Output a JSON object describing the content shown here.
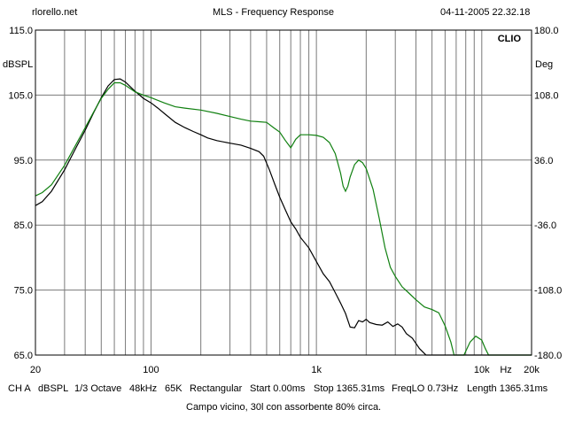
{
  "header": {
    "site": "rlorello.net",
    "title": "MLS - Frequency Response",
    "datetime": "04-11-2005 22.32.18",
    "logo": "CLIO"
  },
  "footer": {
    "channel": "CH A",
    "unit": "dBSPL",
    "smoothing": "1/3 Octave",
    "rate": "48kHz",
    "size": "65K",
    "window": "Rectangular",
    "start": "Start 0.00ms",
    "stop": "Stop 1365.31ms",
    "freqlo": "FreqLO 0.73Hz",
    "length": "Length 1365.31ms",
    "note": "Campo vicino, 30l con assorbente 80% circa."
  },
  "chart_data": {
    "type": "line",
    "xscale": "log",
    "xlim": [
      20,
      20000
    ],
    "ylim": [
      65,
      115
    ],
    "y2lim": [
      -180,
      180
    ],
    "ylabel": "dBSPL",
    "y2label": "Deg",
    "xlabel": "Hz",
    "grid": true,
    "x_tick_labels": [
      {
        "value": 20,
        "label": "20"
      },
      {
        "value": 100,
        "label": "100"
      },
      {
        "value": 1000,
        "label": "1k"
      },
      {
        "value": 10000,
        "label": "10k"
      },
      {
        "value": 20000,
        "label": "20k"
      }
    ],
    "y_ticks": [
      {
        "value": 115,
        "label": "115.0"
      },
      {
        "value": 105,
        "label": "105.0"
      },
      {
        "value": 95,
        "label": "95.0"
      },
      {
        "value": 85,
        "label": "85.0"
      },
      {
        "value": 75,
        "label": "75.0"
      },
      {
        "value": 65,
        "label": "65.0"
      }
    ],
    "y2_ticks": [
      {
        "value": 180,
        "label": "180.0"
      },
      {
        "value": 108,
        "label": "108.0"
      },
      {
        "value": 36,
        "label": "36.0"
      },
      {
        "value": -36,
        "label": "-36.0"
      },
      {
        "value": -108,
        "label": "-108.0"
      },
      {
        "value": -180,
        "label": "-180.0"
      }
    ],
    "series": [
      {
        "color": "#000000",
        "points": [
          [
            20,
            88.0
          ],
          [
            22,
            88.6
          ],
          [
            25,
            90.2
          ],
          [
            30,
            93.5
          ],
          [
            35,
            96.8
          ],
          [
            40,
            99.6
          ],
          [
            45,
            102.3
          ],
          [
            50,
            104.6
          ],
          [
            55,
            106.4
          ],
          [
            60,
            107.4
          ],
          [
            65,
            107.5
          ],
          [
            70,
            107.0
          ],
          [
            80,
            105.6
          ],
          [
            90,
            104.5
          ],
          [
            100,
            103.8
          ],
          [
            110,
            103.0
          ],
          [
            120,
            102.2
          ],
          [
            140,
            100.8
          ],
          [
            160,
            100.0
          ],
          [
            180,
            99.4
          ],
          [
            200,
            98.9
          ],
          [
            220,
            98.4
          ],
          [
            250,
            98.0
          ],
          [
            300,
            97.6
          ],
          [
            350,
            97.3
          ],
          [
            400,
            96.8
          ],
          [
            450,
            96.3
          ],
          [
            480,
            95.6
          ],
          [
            520,
            93.5
          ],
          [
            560,
            91.3
          ],
          [
            600,
            89.3
          ],
          [
            650,
            87.3
          ],
          [
            700,
            85.5
          ],
          [
            750,
            84.4
          ],
          [
            800,
            83.1
          ],
          [
            900,
            81.5
          ],
          [
            1000,
            79.4
          ],
          [
            1100,
            77.5
          ],
          [
            1200,
            76.3
          ],
          [
            1300,
            74.6
          ],
          [
            1400,
            73.0
          ],
          [
            1500,
            71.4
          ],
          [
            1600,
            69.3
          ],
          [
            1700,
            69.2
          ],
          [
            1800,
            70.3
          ],
          [
            1900,
            70.1
          ],
          [
            2000,
            70.5
          ],
          [
            2100,
            70.0
          ],
          [
            2300,
            69.7
          ],
          [
            2500,
            69.6
          ],
          [
            2700,
            70.1
          ],
          [
            2900,
            69.4
          ],
          [
            3100,
            69.8
          ],
          [
            3300,
            69.3
          ],
          [
            3500,
            68.3
          ],
          [
            3800,
            67.6
          ],
          [
            4200,
            66.0
          ],
          [
            4600,
            65.0
          ],
          [
            20000,
            65.0
          ]
        ]
      },
      {
        "color": "#108010",
        "points": [
          [
            20,
            89.5
          ],
          [
            22,
            90.0
          ],
          [
            25,
            91.2
          ],
          [
            30,
            94.2
          ],
          [
            35,
            97.3
          ],
          [
            40,
            100.0
          ],
          [
            45,
            102.4
          ],
          [
            50,
            104.5
          ],
          [
            55,
            105.9
          ],
          [
            60,
            106.9
          ],
          [
            65,
            106.9
          ],
          [
            70,
            106.5
          ],
          [
            80,
            105.5
          ],
          [
            90,
            105.0
          ],
          [
            100,
            104.6
          ],
          [
            120,
            103.8
          ],
          [
            140,
            103.2
          ],
          [
            160,
            103.0
          ],
          [
            200,
            102.7
          ],
          [
            250,
            102.2
          ],
          [
            300,
            101.7
          ],
          [
            350,
            101.3
          ],
          [
            400,
            101.0
          ],
          [
            450,
            100.9
          ],
          [
            500,
            100.8
          ],
          [
            550,
            100.0
          ],
          [
            600,
            99.3
          ],
          [
            650,
            98.0
          ],
          [
            700,
            96.9
          ],
          [
            750,
            98.2
          ],
          [
            800,
            98.9
          ],
          [
            900,
            98.9
          ],
          [
            1000,
            98.8
          ],
          [
            1100,
            98.5
          ],
          [
            1200,
            97.7
          ],
          [
            1300,
            96.0
          ],
          [
            1400,
            93.0
          ],
          [
            1450,
            91.0
          ],
          [
            1500,
            90.2
          ],
          [
            1550,
            91.0
          ],
          [
            1600,
            92.4
          ],
          [
            1700,
            94.3
          ],
          [
            1800,
            95.0
          ],
          [
            1900,
            94.6
          ],
          [
            2000,
            93.7
          ],
          [
            2200,
            90.5
          ],
          [
            2400,
            86.0
          ],
          [
            2600,
            81.5
          ],
          [
            2800,
            78.5
          ],
          [
            3000,
            77.1
          ],
          [
            3300,
            75.5
          ],
          [
            3600,
            74.6
          ],
          [
            4000,
            73.5
          ],
          [
            4500,
            72.4
          ],
          [
            5000,
            72.0
          ],
          [
            5500,
            71.5
          ],
          [
            6000,
            69.5
          ],
          [
            6500,
            67.0
          ],
          [
            6800,
            65.0
          ],
          [
            7800,
            65.0
          ],
          [
            8500,
            67.0
          ],
          [
            9200,
            67.9
          ],
          [
            10000,
            67.3
          ],
          [
            10500,
            66.0
          ],
          [
            11000,
            65.0
          ],
          [
            20000,
            65.0
          ]
        ]
      }
    ]
  }
}
